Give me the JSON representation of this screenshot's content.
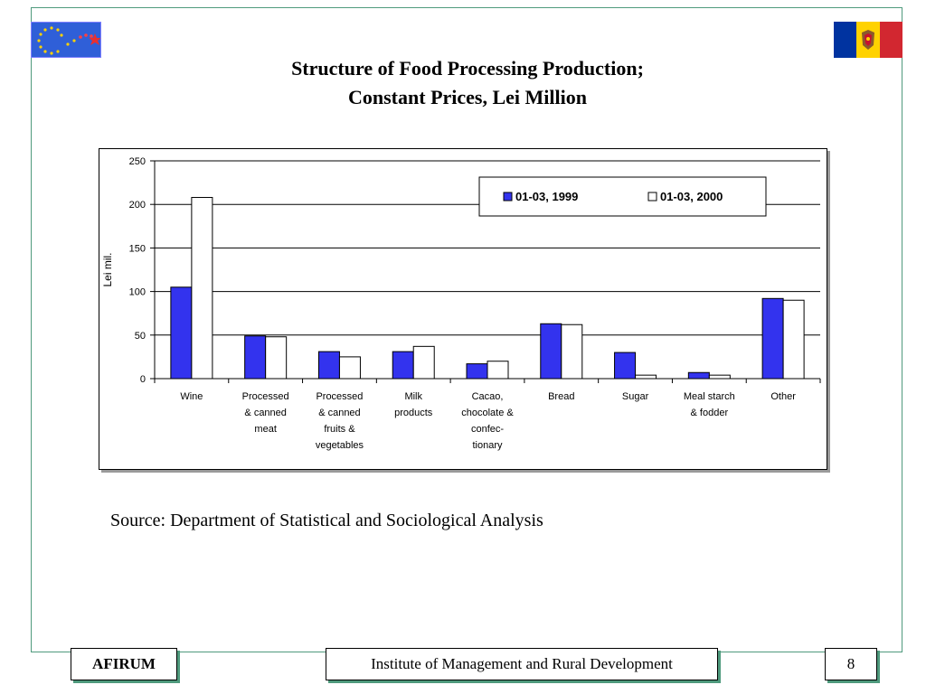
{
  "slide": {
    "title_line1": "Structure of Food Processing Production;",
    "title_line2": "Constant Prices, Lei Million",
    "source": "Source: Department of Statistical and Sociological Analysis",
    "footer_left": "AFIRUM",
    "footer_center": "Institute of Management and Rural Development",
    "page_number": "8"
  },
  "colors": {
    "frame": "#4f9a7d",
    "series_1999": "#3333ee",
    "series_2000": "#ffffff",
    "flag_blue": "#0033a0",
    "flag_yellow": "#ffd200",
    "flag_red": "#d22730"
  },
  "icons": {
    "left_logo": "eu-stars-logo",
    "right_logo": "moldova-flag"
  },
  "chart_data": {
    "type": "bar",
    "title": "",
    "xlabel": "",
    "ylabel": "Lei mil.",
    "ylim": [
      0,
      250
    ],
    "yticks": [
      0,
      50,
      100,
      150,
      200,
      250
    ],
    "grid": true,
    "legend": "top-right",
    "categories": [
      [
        "Wine"
      ],
      [
        "Processed",
        "& canned",
        "meat"
      ],
      [
        "Processed",
        "& canned",
        "fruits &",
        "vegetables"
      ],
      [
        "Milk",
        "products"
      ],
      [
        "Cacao,",
        "chocolate &",
        "confec-",
        "tionary"
      ],
      [
        "Bread"
      ],
      [
        "Sugar"
      ],
      [
        "Meal starch",
        "& fodder"
      ],
      [
        "Other"
      ]
    ],
    "series": [
      {
        "name": "01-03, 1999",
        "color": "#3333ee",
        "values": [
          105,
          49,
          31,
          31,
          17,
          63,
          30,
          7,
          92
        ]
      },
      {
        "name": "01-03, 2000",
        "color": "#ffffff",
        "values": [
          208,
          48,
          25,
          37,
          20,
          62,
          4,
          4,
          90
        ]
      }
    ]
  }
}
